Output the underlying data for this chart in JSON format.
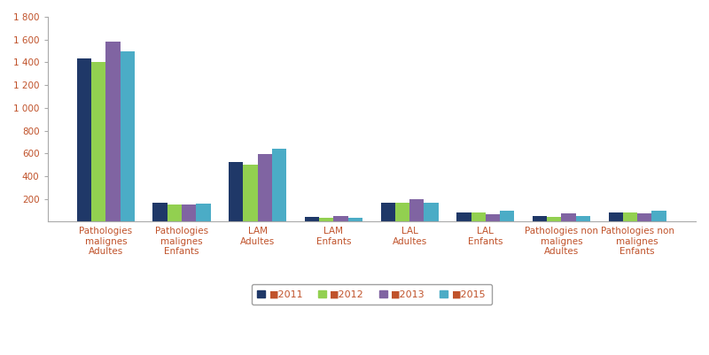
{
  "categories": [
    "Pathologies\nmalignes\nAdultes",
    "Pathologies\nmalignes\nEnfants",
    "LAM\nAdultes",
    "LAM\nEnfants",
    "LAL\nAdultes",
    "LAL\nEnfants",
    "Pathologies non\nmalignes\nAdultes",
    "Pathologies non\nmalignes\nEnfants"
  ],
  "series": {
    "2011": [
      1435,
      170,
      525,
      45,
      168,
      85,
      52,
      85
    ],
    "2012": [
      1405,
      153,
      498,
      35,
      168,
      82,
      40,
      78
    ],
    "2013": [
      1580,
      155,
      593,
      48,
      198,
      68,
      72,
      72
    ],
    "2015": [
      1500,
      158,
      638,
      37,
      170,
      100,
      48,
      98
    ]
  },
  "series_order": [
    "2011",
    "2012",
    "2013",
    "2015"
  ],
  "colors": {
    "2011": "#1F3868",
    "2012": "#92D050",
    "2013": "#8064A2",
    "2015": "#4BACC6"
  },
  "ylim": [
    0,
    1800
  ],
  "yticks": [
    200,
    400,
    600,
    800,
    1000,
    1200,
    1400,
    1600,
    1800
  ],
  "bar_width": 0.19,
  "background_color": "#FFFFFF",
  "tick_label_fontsize": 7.5,
  "legend_fontsize": 8,
  "text_color": "#C0522A",
  "spine_color": "#AAAAAA"
}
